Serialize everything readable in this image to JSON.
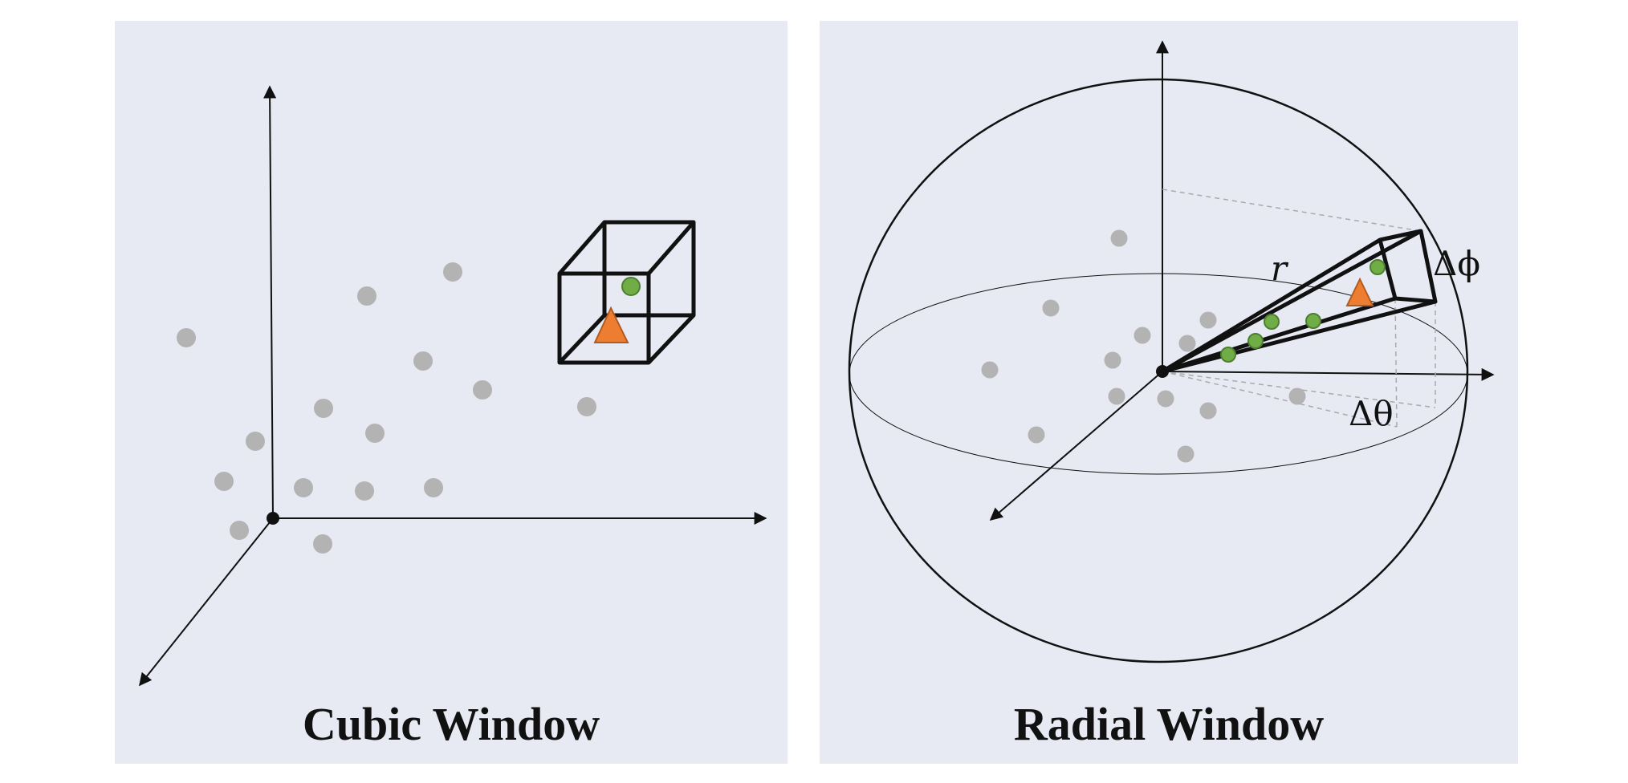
{
  "panels": [
    {
      "caption": "Cubic Window"
    },
    {
      "caption": "Radial Window"
    }
  ],
  "labels": {
    "radius": "r",
    "delta_phi": "Δϕ",
    "delta_theta": "Δθ"
  },
  "colors": {
    "panel_bg": "#e7e9f3",
    "point_gray": "#b3b3b3",
    "point_green": "#70ad47",
    "triangle_orange": "#ed7d31",
    "line": "#111111"
  }
}
